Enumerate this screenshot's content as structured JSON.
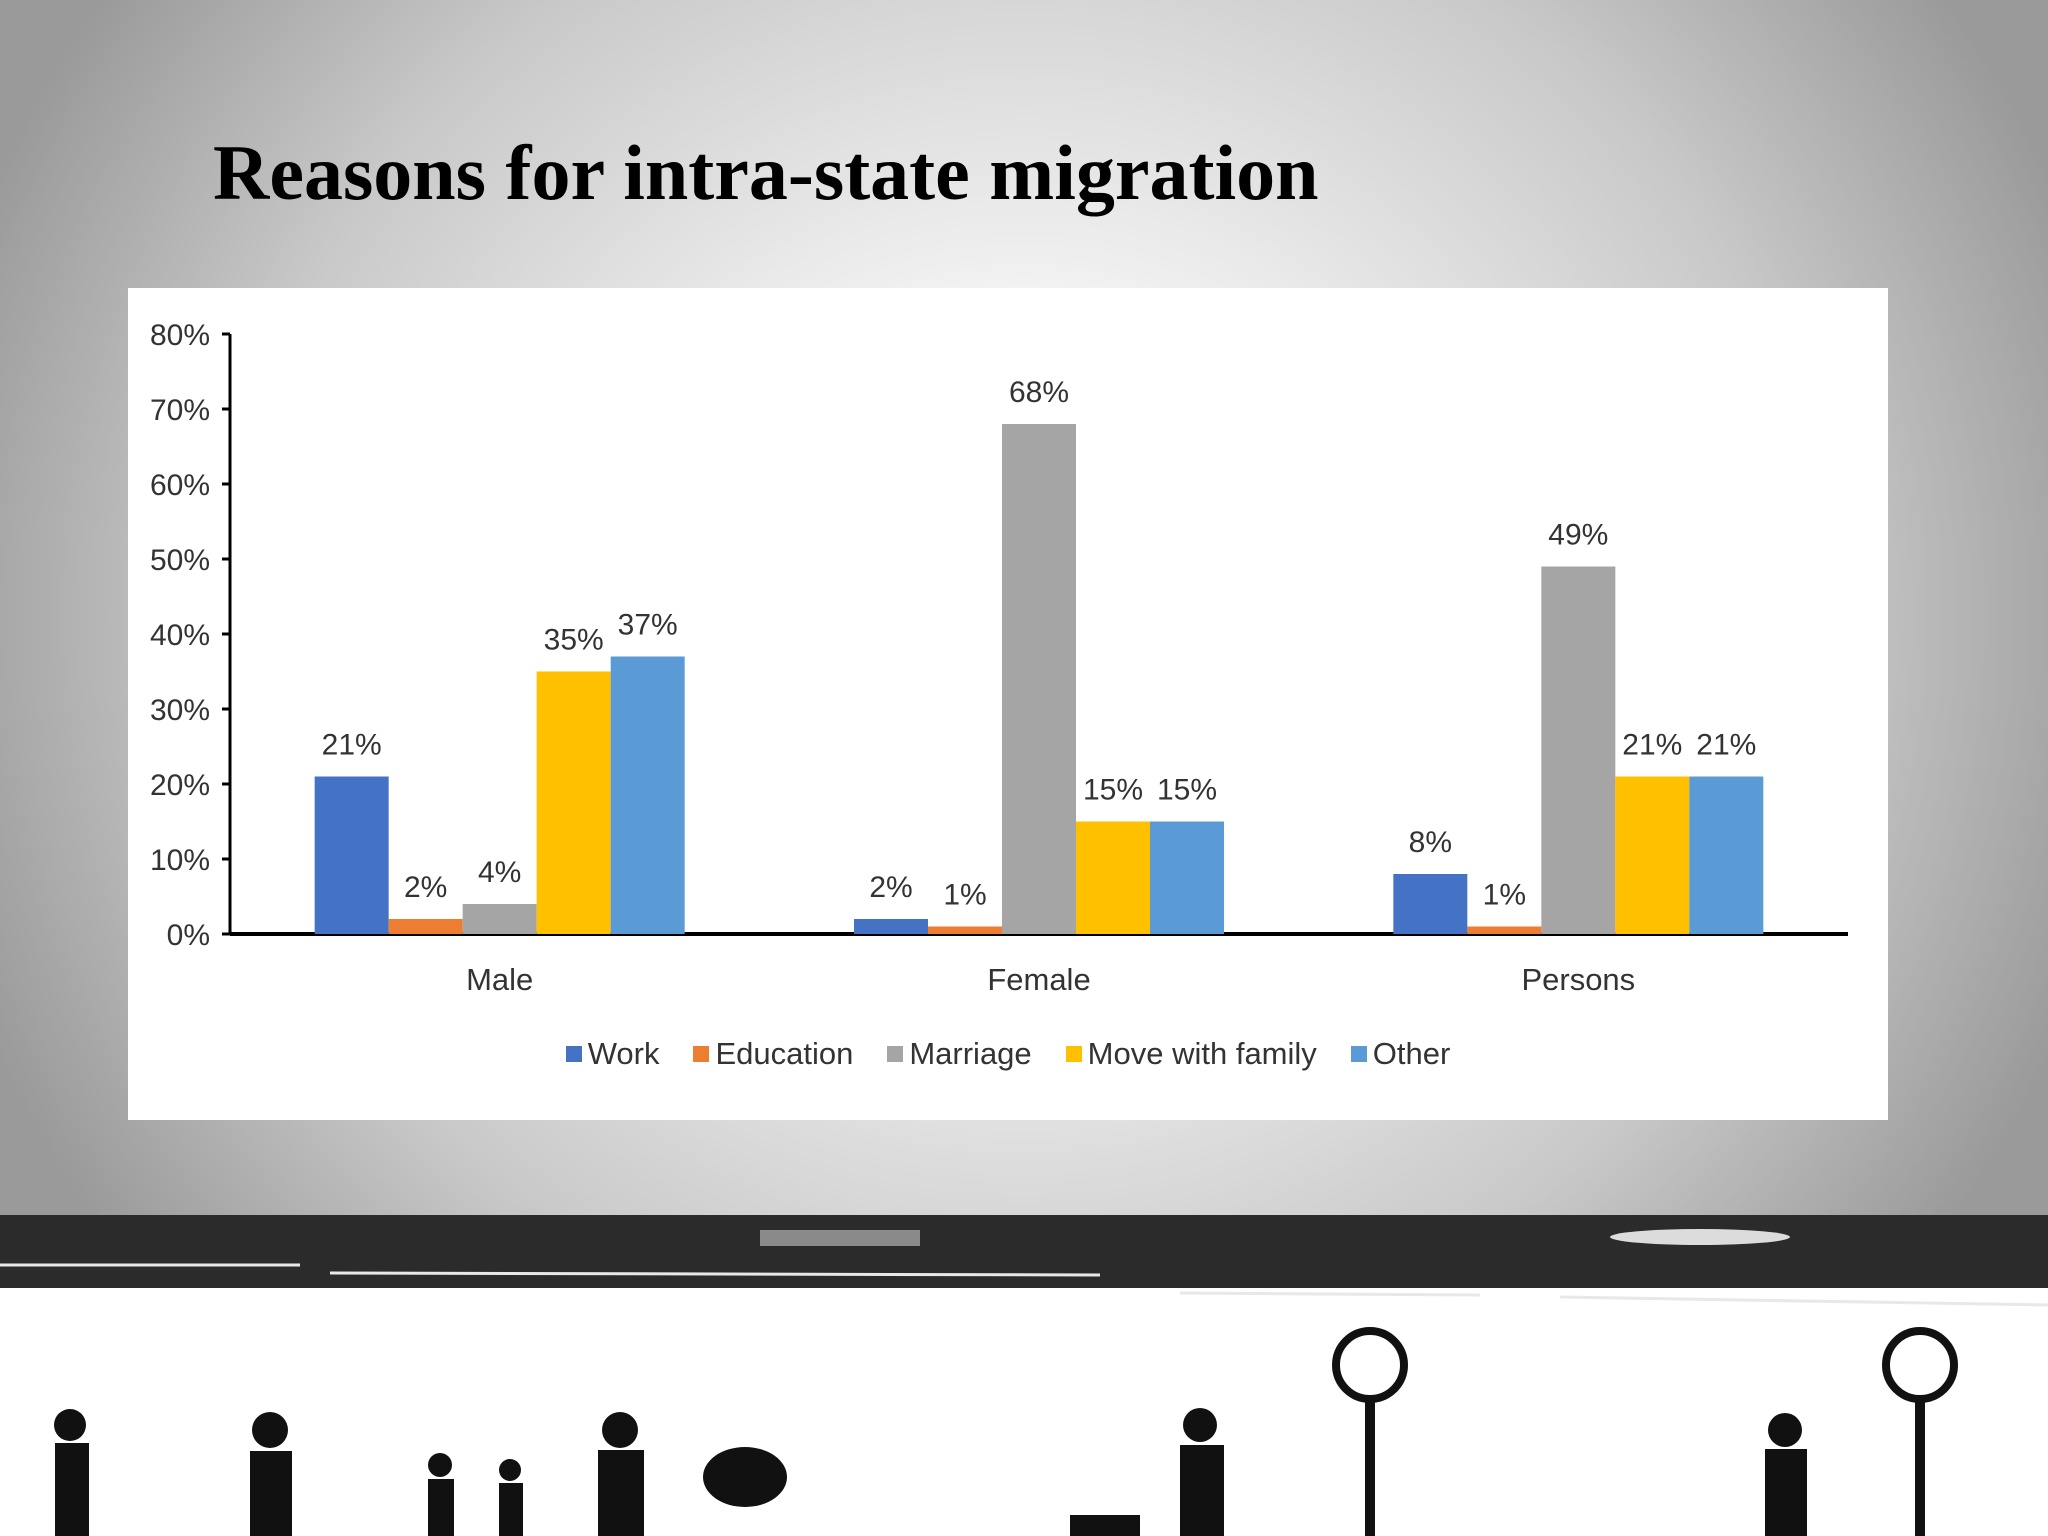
{
  "slide": {
    "title": "Reasons for intra-state migration"
  },
  "chart_data": {
    "type": "bar",
    "title": "",
    "xlabel": "",
    "ylabel": "",
    "ylim": [
      0,
      80
    ],
    "y_ticks": [
      "0%",
      "10%",
      "20%",
      "30%",
      "40%",
      "50%",
      "60%",
      "70%",
      "80%"
    ],
    "categories": [
      "Male",
      "Female",
      "Persons"
    ],
    "series": [
      {
        "name": "Work",
        "color": "#4472C4",
        "values": [
          21,
          2,
          8
        ],
        "labels": [
          "21%",
          "2%",
          "8%"
        ]
      },
      {
        "name": "Education",
        "color": "#ED7D31",
        "values": [
          2,
          1,
          1
        ],
        "labels": [
          "2%",
          "1%",
          "1%"
        ]
      },
      {
        "name": "Marriage",
        "color": "#A5A5A5",
        "values": [
          4,
          68,
          49
        ],
        "labels": [
          "4%",
          "68%",
          "49%"
        ]
      },
      {
        "name": "Move with family",
        "color": "#FFC000",
        "values": [
          35,
          15,
          21
        ],
        "labels": [
          "35%",
          "15%",
          "21%"
        ]
      },
      {
        "name": "Other",
        "color": "#5B9BD5",
        "values": [
          37,
          15,
          21
        ],
        "labels": [
          "37%",
          "15%",
          "21%"
        ]
      }
    ],
    "legend_position": "bottom",
    "grid": false
  }
}
